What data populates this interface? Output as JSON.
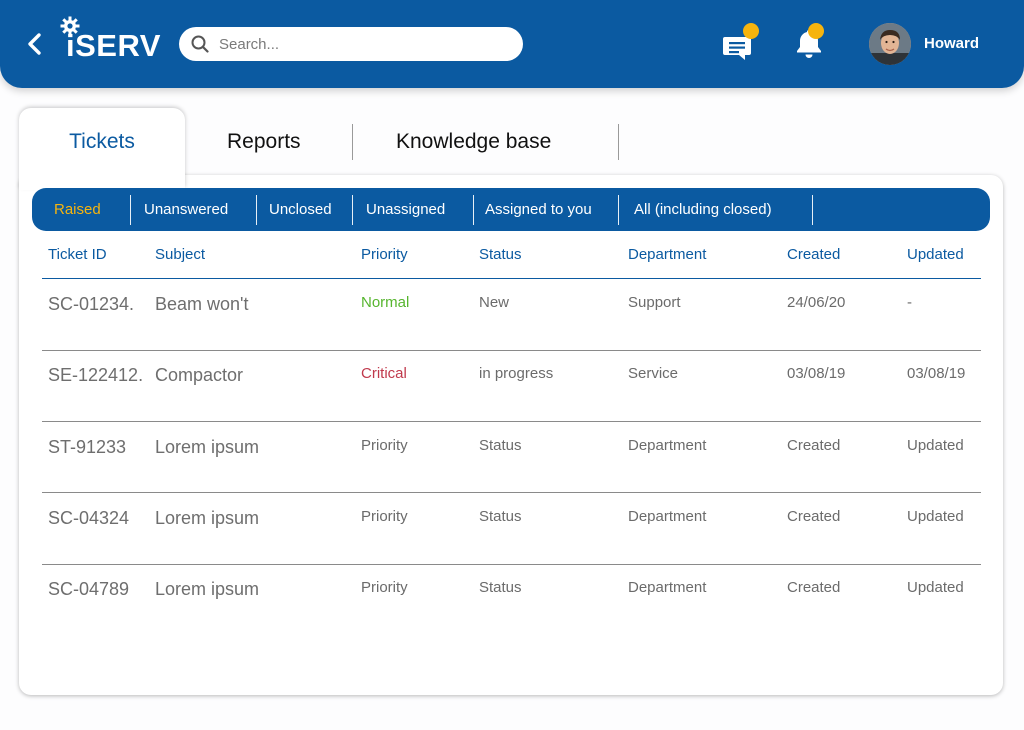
{
  "header": {
    "logo_text": "iSERV",
    "search_placeholder": "Search...",
    "user_name": "Howard",
    "colors": {
      "primary": "#0b5aa1",
      "notification_dot": "#f6b40e"
    },
    "icons": [
      "back-chevron-icon",
      "gear-icon",
      "search-icon",
      "chat-icon",
      "bell-icon"
    ]
  },
  "tabs": [
    {
      "label": "Tickets",
      "active": true
    },
    {
      "label": "Reports",
      "active": false
    },
    {
      "label": "Knowledge base",
      "active": false
    }
  ],
  "filters": [
    {
      "label": "Raised",
      "active": true
    },
    {
      "label": "Unanswered",
      "active": false
    },
    {
      "label": "Unclosed",
      "active": false
    },
    {
      "label": "Unassigned",
      "active": false
    },
    {
      "label": "Assigned to you",
      "active": false
    },
    {
      "label": "All (including closed)",
      "active": false
    }
  ],
  "table": {
    "columns": [
      "Ticket ID",
      "Subject",
      "Priority",
      "Status",
      "Department",
      "Created",
      "Updated"
    ],
    "rows": [
      [
        "SC-01234.",
        "Beam won't",
        "Normal",
        "New",
        "Support",
        "24/06/20",
        "-"
      ],
      [
        "SE-122412.",
        "Compactor",
        "Critical",
        "in progress",
        "Service",
        "03/08/19",
        "03/08/19"
      ],
      [
        "ST-91233",
        "Lorem ipsum",
        "Priority",
        "Status",
        "Department",
        "Created",
        "Updated"
      ],
      [
        "SC-04324",
        "Lorem ipsum",
        "Priority",
        "Status",
        "Department",
        "Created",
        "Updated"
      ],
      [
        "SC-04789",
        "Lorem ipsum",
        "Priority",
        "Status",
        "Department",
        "Created",
        "Updated"
      ]
    ],
    "priority_colors": {
      "Normal": "#57b52f",
      "Critical": "#c0394c"
    }
  }
}
